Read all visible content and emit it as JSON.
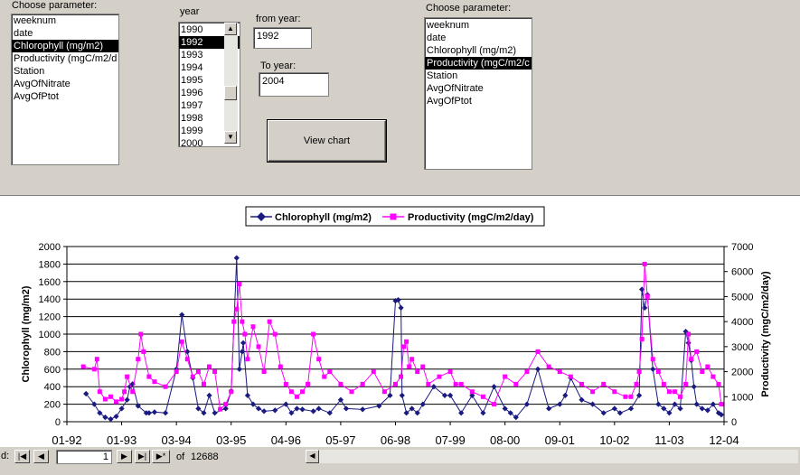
{
  "left_panel": {
    "label": "Choose parameter:",
    "items": [
      "weeknum",
      "date",
      "Chlorophyll (mg/m2)",
      "Productivity (mgC/m2/d",
      "Station",
      "AvgOfNitrate",
      "AvgOfPtot"
    ],
    "selected_index": 2
  },
  "year_panel": {
    "label": "year",
    "items": [
      "1990",
      "1992",
      "1993",
      "1994",
      "1995",
      "1996",
      "1997",
      "1998",
      "1999",
      "2000"
    ],
    "selected_index": 1
  },
  "from_year": {
    "label": "from year:",
    "value": "1992"
  },
  "to_year": {
    "label": "To year:",
    "value": "2004"
  },
  "view_chart_button": {
    "label": "View chart"
  },
  "right_panel": {
    "label": "Choose parameter:",
    "items": [
      "weeknum",
      "date",
      "Chlorophyll (mg/m2)",
      "Productivity (mgC/m2/c",
      "Station",
      "AvgOfNitrate",
      "AvgOfPtot"
    ],
    "selected_index": 3
  },
  "record_nav": {
    "label": "d:",
    "current": "1",
    "of_label": "of",
    "total": "12688",
    "first_glyph": "|◀",
    "prev_glyph": "◀",
    "next_glyph": "▶",
    "last_glyph": "▶|",
    "new_glyph": "▶*"
  },
  "colors": {
    "series1": "#1a1a80",
    "series2": "#ff00ff"
  },
  "chart_data": {
    "type": "line",
    "title": "",
    "legend_position": "top",
    "ylabel": "Chlorophyll (mg/m2)",
    "y2label": "Productivity (mgC/m2/day)",
    "ylim": [
      0,
      2000
    ],
    "y2lim": [
      0,
      7000
    ],
    "xlim": [
      0,
      12
    ],
    "yticks": [
      "0",
      "200",
      "400",
      "600",
      "800",
      "1000",
      "1200",
      "1400",
      "1600",
      "1800",
      "2000"
    ],
    "y2ticks": [
      "0",
      "1000",
      "2000",
      "3000",
      "4000",
      "5000",
      "6000",
      "7000"
    ],
    "xticks": [
      "01-92",
      "01-93",
      "03-94",
      "03-95",
      "04-96",
      "05-97",
      "06-98",
      "07-99",
      "08-00",
      "09-01",
      "10-02",
      "11-03",
      "12-04"
    ],
    "series": [
      {
        "name": "Chlorophyll (mg/m2)",
        "axis": "left",
        "marker": "diamond",
        "x": [
          0.35,
          0.5,
          0.6,
          0.7,
          0.8,
          0.9,
          1.0,
          1.1,
          1.15,
          1.2,
          1.3,
          1.45,
          1.5,
          1.6,
          1.8,
          2.0,
          2.1,
          2.2,
          2.3,
          2.4,
          2.5,
          2.6,
          2.7,
          2.9,
          3.0,
          3.1,
          3.15,
          3.2,
          3.22,
          3.3,
          3.4,
          3.5,
          3.6,
          3.8,
          4.0,
          4.1,
          4.2,
          4.3,
          4.5,
          4.6,
          4.8,
          5.0,
          5.1,
          5.4,
          5.7,
          5.9,
          6.0,
          6.05,
          6.1,
          6.12,
          6.2,
          6.3,
          6.4,
          6.5,
          6.7,
          6.9,
          7.0,
          7.2,
          7.4,
          7.6,
          7.8,
          8.0,
          8.1,
          8.2,
          8.4,
          8.6,
          8.8,
          9.0,
          9.1,
          9.2,
          9.4,
          9.6,
          9.8,
          10.0,
          10.1,
          10.3,
          10.45,
          10.5,
          10.55,
          10.6,
          10.7,
          10.8,
          10.9,
          11.0,
          11.1,
          11.2,
          11.3,
          11.35,
          11.4,
          11.45,
          11.5,
          11.6,
          11.7,
          11.8,
          11.9,
          11.95
        ],
        "values": [
          320,
          200,
          100,
          50,
          30,
          60,
          150,
          250,
          400,
          430,
          180,
          100,
          100,
          110,
          100,
          600,
          1220,
          800,
          500,
          150,
          100,
          300,
          100,
          150,
          350,
          1870,
          600,
          800,
          900,
          300,
          200,
          150,
          120,
          130,
          200,
          100,
          150,
          140,
          120,
          150,
          100,
          250,
          150,
          140,
          180,
          300,
          1380,
          1390,
          1300,
          300,
          100,
          150,
          100,
          200,
          400,
          300,
          300,
          100,
          300,
          100,
          400,
          150,
          100,
          50,
          200,
          600,
          150,
          200,
          300,
          500,
          250,
          200,
          100,
          150,
          100,
          150,
          300,
          1510,
          1300,
          1450,
          600,
          200,
          150,
          100,
          200,
          150,
          1030,
          900,
          700,
          400,
          200,
          150,
          130,
          200,
          100,
          80
        ]
      },
      {
        "name": "Productivity (mgC/m2/day)",
        "axis": "right",
        "marker": "square",
        "x": [
          0.3,
          0.5,
          0.55,
          0.6,
          0.7,
          0.8,
          0.9,
          1.0,
          1.05,
          1.1,
          1.2,
          1.3,
          1.35,
          1.4,
          1.5,
          1.6,
          1.8,
          2.0,
          2.1,
          2.2,
          2.3,
          2.4,
          2.5,
          2.6,
          2.7,
          2.8,
          2.9,
          3.0,
          3.05,
          3.1,
          3.15,
          3.2,
          3.25,
          3.3,
          3.4,
          3.5,
          3.6,
          3.7,
          3.8,
          3.9,
          4.0,
          4.1,
          4.2,
          4.3,
          4.4,
          4.5,
          4.6,
          4.7,
          4.8,
          5.0,
          5.2,
          5.4,
          5.6,
          5.8,
          6.0,
          6.1,
          6.15,
          6.2,
          6.25,
          6.3,
          6.4,
          6.5,
          6.6,
          6.8,
          7.0,
          7.1,
          7.2,
          7.4,
          7.6,
          7.8,
          8.0,
          8.2,
          8.4,
          8.6,
          8.8,
          9.0,
          9.2,
          9.4,
          9.6,
          9.8,
          10.0,
          10.2,
          10.3,
          10.4,
          10.45,
          10.5,
          10.55,
          10.6,
          10.7,
          10.8,
          10.9,
          11.0,
          11.1,
          11.2,
          11.3,
          11.35,
          11.4,
          11.5,
          11.6,
          11.7,
          11.8,
          11.9,
          11.95
        ],
        "values": [
          2200,
          2100,
          2500,
          1200,
          900,
          1000,
          800,
          900,
          1200,
          1800,
          1200,
          2500,
          3500,
          2800,
          1800,
          1600,
          1400,
          2000,
          3200,
          2500,
          1800,
          2000,
          1500,
          2200,
          2000,
          500,
          700,
          1200,
          4000,
          4500,
          5500,
          4000,
          3500,
          2500,
          3800,
          3000,
          2000,
          4000,
          3500,
          2200,
          1500,
          1200,
          1000,
          1200,
          1500,
          3500,
          2500,
          1800,
          2000,
          1500,
          1200,
          1500,
          2000,
          1200,
          1500,
          1800,
          3000,
          3200,
          2200,
          2500,
          2000,
          2200,
          1500,
          1800,
          2000,
          1500,
          1500,
          1200,
          1000,
          700,
          1800,
          1500,
          2000,
          2800,
          2200,
          2000,
          1800,
          1500,
          1200,
          1500,
          1200,
          1000,
          1000,
          1500,
          2000,
          3300,
          6300,
          5000,
          2500,
          2000,
          1500,
          1200,
          1200,
          1000,
          1500,
          3500,
          2500,
          2800,
          2000,
          2200,
          1800,
          1500,
          700
        ]
      }
    ]
  }
}
